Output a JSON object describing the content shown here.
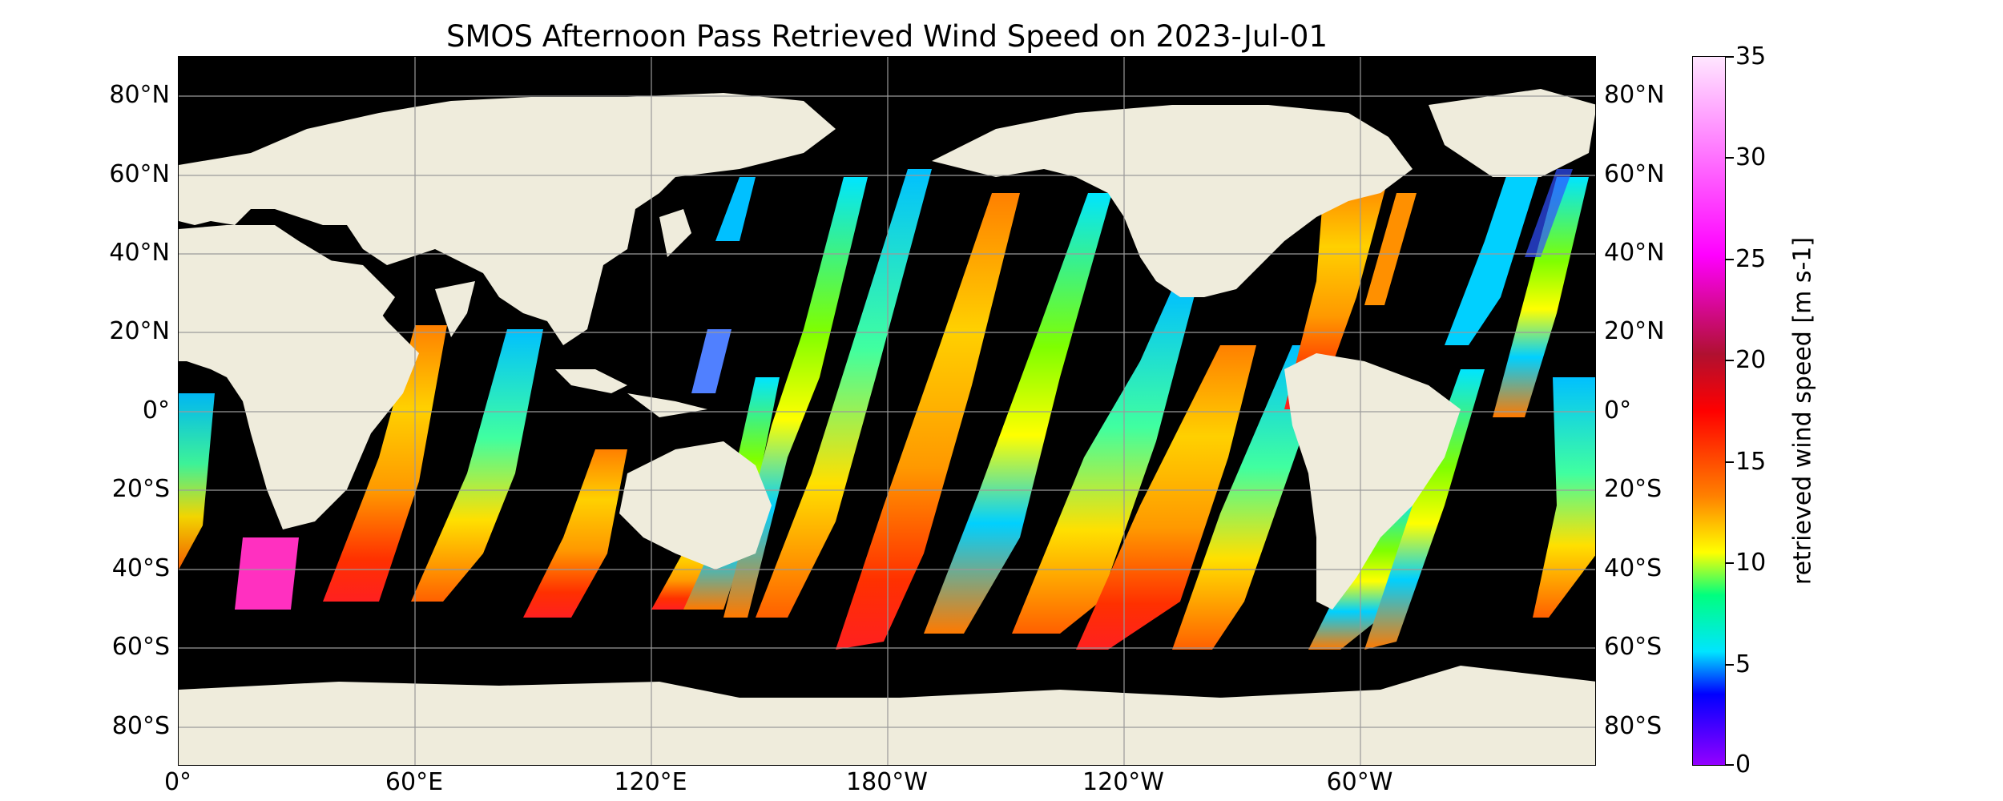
{
  "title": "SMOS Afternoon Pass Retrieved Wind Speed on 2023-Jul-01",
  "lat_labels": [
    "80°N",
    "60°N",
    "40°N",
    "20°N",
    "0°",
    "20°S",
    "40°S",
    "60°S",
    "80°S"
  ],
  "lon_labels": [
    "0°",
    "60°E",
    "120°E",
    "180°W",
    "120°W",
    "60°W"
  ],
  "colorbar": {
    "label": "retrieved wind speed [m s-1]",
    "ticks": [
      "35",
      "30",
      "25",
      "20",
      "15",
      "10",
      "5",
      "0"
    ],
    "range": [
      0,
      35
    ],
    "colors": [
      "#9400ff",
      "#0000ff",
      "#00e5ff",
      "#00ff7f",
      "#ffff00",
      "#ff8000",
      "#ff0000",
      "#b01030",
      "#ff00ff",
      "#ffe6ff"
    ]
  },
  "colors": {
    "land": "#efecdc",
    "ocean_mask": "#000000",
    "grid": "#9a9a9a"
  }
}
